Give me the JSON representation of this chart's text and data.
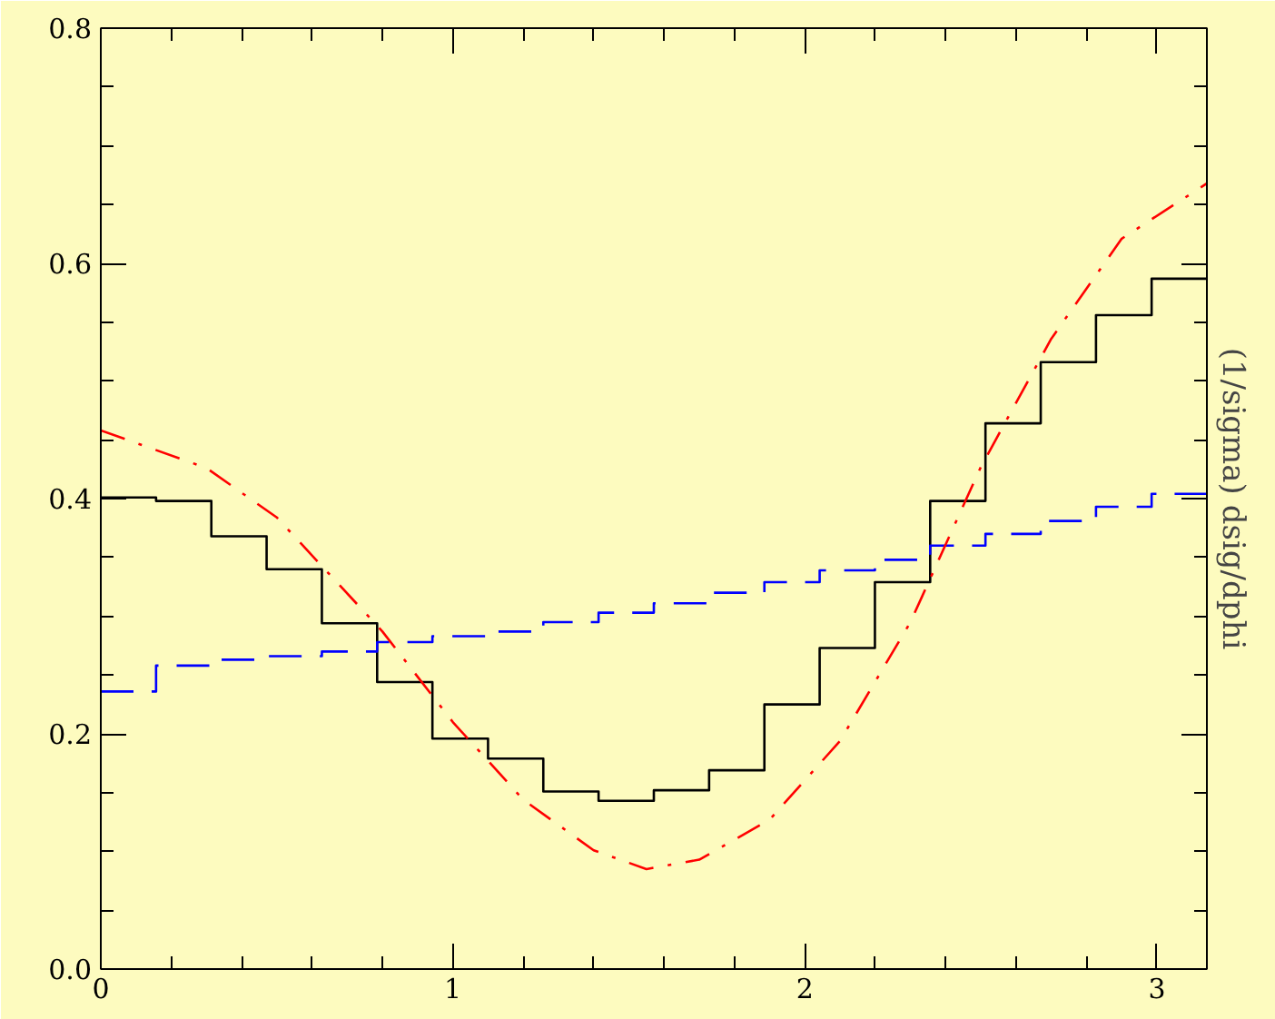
{
  "chart_data": {
    "type": "histogram",
    "ylabel": "(1/sigma) dsig/dphi",
    "bins": [
      0,
      0.157,
      0.314,
      0.471,
      0.628,
      0.785,
      0.942,
      1.1,
      1.257,
      1.414,
      1.571,
      1.728,
      1.885,
      2.042,
      2.199,
      2.356,
      2.513,
      2.67,
      2.827,
      2.985,
      3.142
    ],
    "series": [
      {
        "color": "#000000",
        "line_style": "solid",
        "values": [
          0.401,
          0.398,
          0.368,
          0.34,
          0.294,
          0.244,
          0.196,
          0.179,
          0.151,
          0.143,
          0.152,
          0.169,
          0.225,
          0.273,
          0.329,
          0.398,
          0.464,
          0.516,
          0.556,
          0.587
        ]
      },
      {
        "color": "#0000ff",
        "line_style": "dashed",
        "values": [
          0.236,
          0.258,
          0.263,
          0.266,
          0.27,
          0.278,
          0.283,
          0.287,
          0.295,
          0.303,
          0.311,
          0.32,
          0.329,
          0.339,
          0.348,
          0.36,
          0.37,
          0.381,
          0.393,
          0.404
        ]
      },
      {
        "type": "line",
        "color": "#ff0000",
        "line_style": "dashdot",
        "x": [
          0,
          0.3,
          0.5,
          0.8,
          1.0,
          1.2,
          1.4,
          1.55,
          1.7,
          1.9,
          2.1,
          2.3,
          2.5,
          2.7,
          2.9,
          3.142
        ],
        "values": [
          0.458,
          0.426,
          0.384,
          0.287,
          0.21,
          0.144,
          0.101,
          0.085,
          0.093,
          0.127,
          0.194,
          0.295,
          0.427,
          0.536,
          0.621,
          0.668
        ]
      }
    ],
    "xlim": [
      0,
      3.142
    ],
    "ylim": [
      0,
      0.8
    ],
    "xticks": [
      0,
      1,
      2,
      3
    ],
    "yticks": [
      {
        "value": 0,
        "label": "0.0"
      },
      {
        "value": 0.2,
        "label": "0.2"
      },
      {
        "value": 0.4,
        "label": "0.4"
      },
      {
        "value": 0.6,
        "label": "0.6"
      },
      {
        "value": 0.8,
        "label": "0.8"
      }
    ],
    "grid": false
  }
}
